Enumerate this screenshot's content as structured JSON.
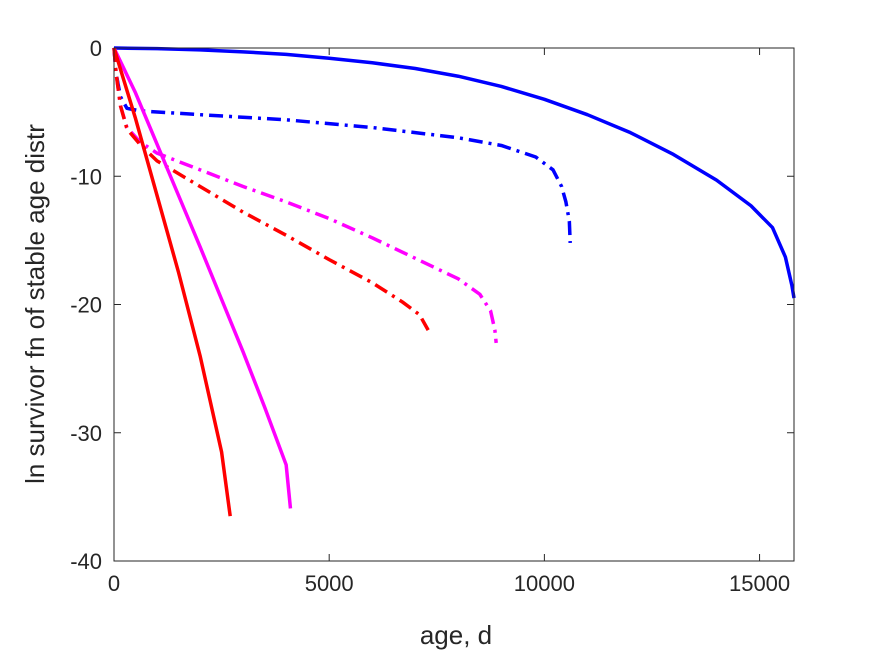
{
  "chart_data": {
    "type": "line",
    "title": "",
    "xlabel": "age, d",
    "ylabel": "ln survivor fn of stable age distr",
    "xlim": [
      0,
      15800
    ],
    "ylim": [
      -40,
      0
    ],
    "xticks": [
      0,
      5000,
      10000,
      15000
    ],
    "xtick_labels": [
      "0",
      "5000",
      "10000",
      "15000"
    ],
    "yticks": [
      0,
      -10,
      -20,
      -30,
      -40
    ],
    "ytick_labels": [
      "0",
      "-10",
      "-20",
      "-30",
      "-40"
    ],
    "grid": false,
    "legend": "none",
    "series": [
      {
        "color": "#0000ff",
        "style": "solid",
        "points": [
          [
            0,
            0
          ],
          [
            1000,
            -0.05
          ],
          [
            2000,
            -0.15
          ],
          [
            3000,
            -0.3
          ],
          [
            4000,
            -0.5
          ],
          [
            5000,
            -0.8
          ],
          [
            6000,
            -1.15
          ],
          [
            7000,
            -1.6
          ],
          [
            8000,
            -2.2
          ],
          [
            9000,
            -3.0
          ],
          [
            10000,
            -4.0
          ],
          [
            11000,
            -5.2
          ],
          [
            12000,
            -6.6
          ],
          [
            13000,
            -8.3
          ],
          [
            14000,
            -10.3
          ],
          [
            14800,
            -12.3
          ],
          [
            15300,
            -14.0
          ],
          [
            15600,
            -16.3
          ],
          [
            15750,
            -18.5
          ],
          [
            15800,
            -19.5
          ]
        ]
      },
      {
        "color": "#0000ff",
        "style": "dashdot",
        "points": [
          [
            0,
            0
          ],
          [
            50,
            -2.0
          ],
          [
            150,
            -3.8
          ],
          [
            300,
            -4.7
          ],
          [
            600,
            -4.9
          ],
          [
            2000,
            -5.2
          ],
          [
            4000,
            -5.6
          ],
          [
            6000,
            -6.2
          ],
          [
            8000,
            -7.0
          ],
          [
            9000,
            -7.6
          ],
          [
            9800,
            -8.5
          ],
          [
            10200,
            -9.5
          ],
          [
            10400,
            -10.8
          ],
          [
            10500,
            -12.0
          ],
          [
            10580,
            -13.5
          ],
          [
            10600,
            -15.2
          ]
        ]
      },
      {
        "color": "#ff00ff",
        "style": "dashdot",
        "points": [
          [
            0,
            0
          ],
          [
            50,
            -2.0
          ],
          [
            150,
            -4.5
          ],
          [
            300,
            -6.2
          ],
          [
            600,
            -7.3
          ],
          [
            1000,
            -8.2
          ],
          [
            2000,
            -9.5
          ],
          [
            3000,
            -10.8
          ],
          [
            4000,
            -12.0
          ],
          [
            5000,
            -13.3
          ],
          [
            6000,
            -14.8
          ],
          [
            7000,
            -16.4
          ],
          [
            8000,
            -18.0
          ],
          [
            8500,
            -19.2
          ],
          [
            8750,
            -20.5
          ],
          [
            8850,
            -22.0
          ],
          [
            8880,
            -23.0
          ]
        ]
      },
      {
        "color": "#ff0000",
        "style": "dashdot",
        "points": [
          [
            0,
            0
          ],
          [
            50,
            -2.0
          ],
          [
            150,
            -4.5
          ],
          [
            300,
            -6.3
          ],
          [
            600,
            -7.5
          ],
          [
            1000,
            -8.8
          ],
          [
            2000,
            -10.8
          ],
          [
            3000,
            -12.8
          ],
          [
            4000,
            -14.6
          ],
          [
            5000,
            -16.5
          ],
          [
            6000,
            -18.3
          ],
          [
            6700,
            -19.8
          ],
          [
            7100,
            -20.8
          ],
          [
            7300,
            -22.0
          ]
        ]
      },
      {
        "color": "#ff00ff",
        "style": "solid",
        "points": [
          [
            0,
            0
          ],
          [
            500,
            -3.5
          ],
          [
            1000,
            -7.5
          ],
          [
            1500,
            -11.5
          ],
          [
            2000,
            -15.5
          ],
          [
            2500,
            -19.6
          ],
          [
            3000,
            -23.7
          ],
          [
            3500,
            -28.0
          ],
          [
            4000,
            -32.5
          ],
          [
            4100,
            -35.9
          ]
        ]
      },
      {
        "color": "#ff0000",
        "style": "solid",
        "points": [
          [
            0,
            0
          ],
          [
            500,
            -5.5
          ],
          [
            1000,
            -11.5
          ],
          [
            1500,
            -17.5
          ],
          [
            2000,
            -24.0
          ],
          [
            2500,
            -31.5
          ],
          [
            2700,
            -36.5
          ]
        ]
      }
    ]
  }
}
